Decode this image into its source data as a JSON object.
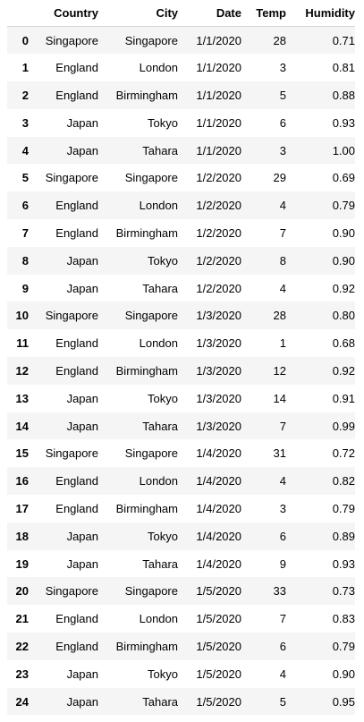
{
  "table": {
    "columns": [
      "",
      "Country",
      "City",
      "Date",
      "Temp",
      "Humidity"
    ],
    "rows": [
      [
        "0",
        "Singapore",
        "Singapore",
        "1/1/2020",
        "28",
        "0.71"
      ],
      [
        "1",
        "England",
        "London",
        "1/1/2020",
        "3",
        "0.81"
      ],
      [
        "2",
        "England",
        "Birmingham",
        "1/1/2020",
        "5",
        "0.88"
      ],
      [
        "3",
        "Japan",
        "Tokyo",
        "1/1/2020",
        "6",
        "0.93"
      ],
      [
        "4",
        "Japan",
        "Tahara",
        "1/1/2020",
        "3",
        "1.00"
      ],
      [
        "5",
        "Singapore",
        "Singapore",
        "1/2/2020",
        "29",
        "0.69"
      ],
      [
        "6",
        "England",
        "London",
        "1/2/2020",
        "4",
        "0.79"
      ],
      [
        "7",
        "England",
        "Birmingham",
        "1/2/2020",
        "7",
        "0.90"
      ],
      [
        "8",
        "Japan",
        "Tokyo",
        "1/2/2020",
        "8",
        "0.90"
      ],
      [
        "9",
        "Japan",
        "Tahara",
        "1/2/2020",
        "4",
        "0.92"
      ],
      [
        "10",
        "Singapore",
        "Singapore",
        "1/3/2020",
        "28",
        "0.80"
      ],
      [
        "11",
        "England",
        "London",
        "1/3/2020",
        "1",
        "0.68"
      ],
      [
        "12",
        "England",
        "Birmingham",
        "1/3/2020",
        "12",
        "0.92"
      ],
      [
        "13",
        "Japan",
        "Tokyo",
        "1/3/2020",
        "14",
        "0.91"
      ],
      [
        "14",
        "Japan",
        "Tahara",
        "1/3/2020",
        "7",
        "0.99"
      ],
      [
        "15",
        "Singapore",
        "Singapore",
        "1/4/2020",
        "31",
        "0.72"
      ],
      [
        "16",
        "England",
        "London",
        "1/4/2020",
        "4",
        "0.82"
      ],
      [
        "17",
        "England",
        "Birmingham",
        "1/4/2020",
        "3",
        "0.79"
      ],
      [
        "18",
        "Japan",
        "Tokyo",
        "1/4/2020",
        "6",
        "0.89"
      ],
      [
        "19",
        "Japan",
        "Tahara",
        "1/4/2020",
        "9",
        "0.93"
      ],
      [
        "20",
        "Singapore",
        "Singapore",
        "1/5/2020",
        "33",
        "0.73"
      ],
      [
        "21",
        "England",
        "London",
        "1/5/2020",
        "7",
        "0.83"
      ],
      [
        "22",
        "England",
        "Birmingham",
        "1/5/2020",
        "6",
        "0.79"
      ],
      [
        "23",
        "Japan",
        "Tokyo",
        "1/5/2020",
        "4",
        "0.90"
      ],
      [
        "24",
        "Japan",
        "Tahara",
        "1/5/2020",
        "5",
        "0.95"
      ]
    ]
  }
}
